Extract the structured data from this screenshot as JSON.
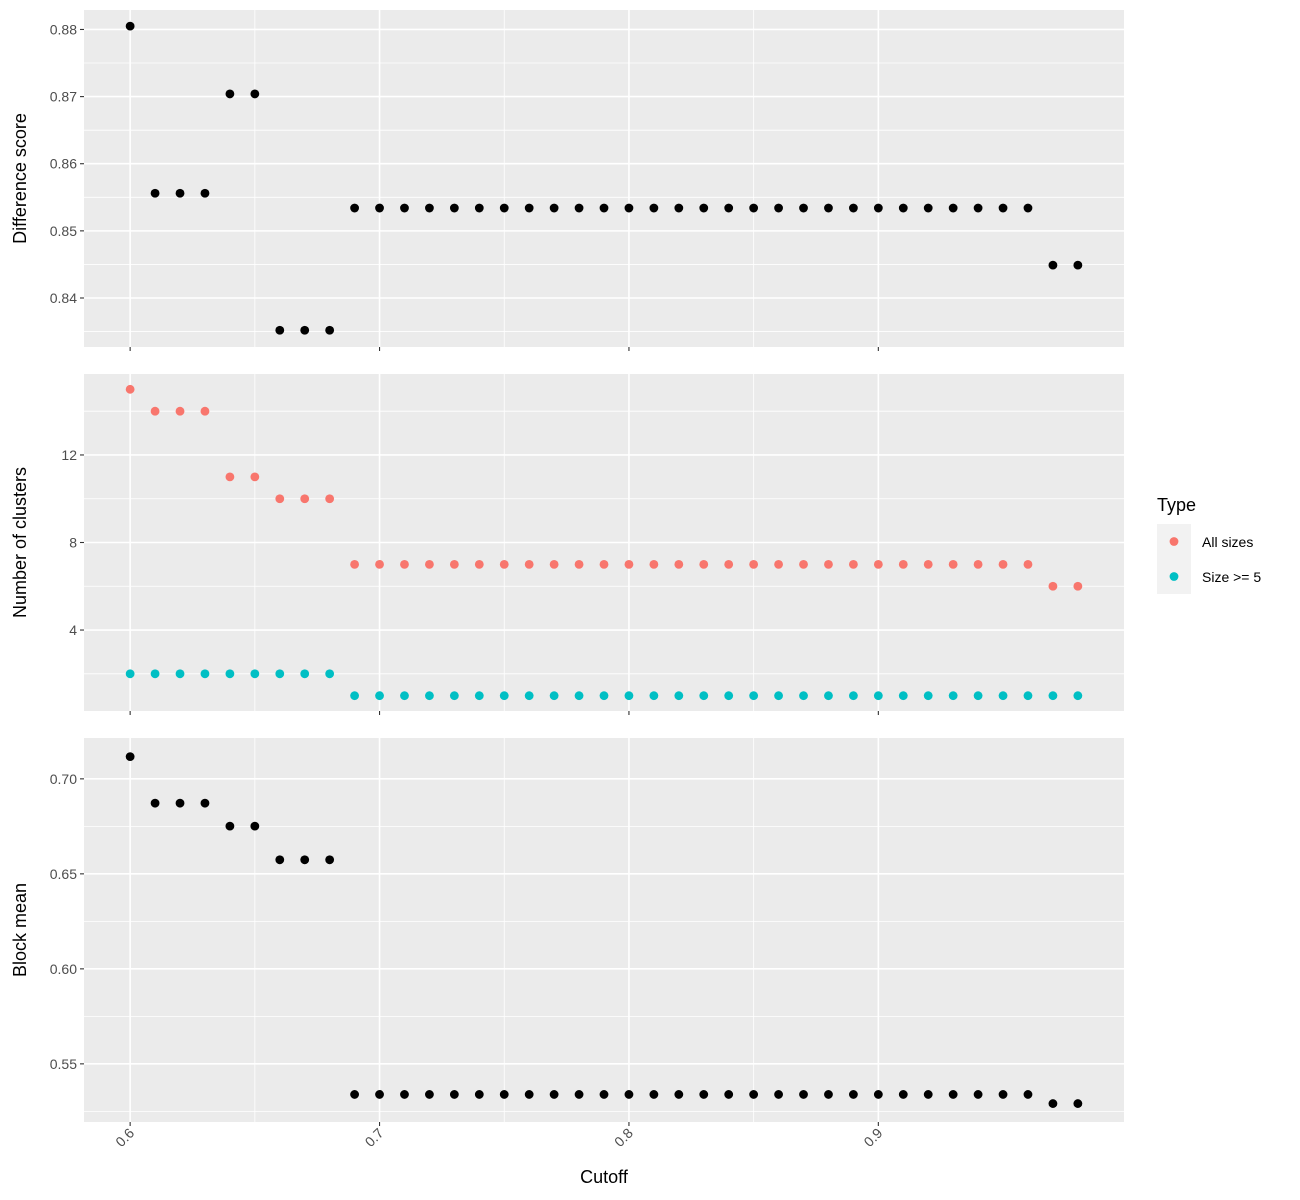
{
  "chart_data": {
    "type": "scatter",
    "x_label": "Cutoff",
    "x_ticks": [
      0.6,
      0.7,
      0.8,
      0.9
    ],
    "x_tick_labels": [
      "0.6",
      "0.7",
      "0.8",
      "0.9"
    ],
    "x_range": [
      0.5815,
      0.9985
    ],
    "x": [
      0.6,
      0.61,
      0.62,
      0.63,
      0.64,
      0.65,
      0.66,
      0.67,
      0.68,
      0.69,
      0.7,
      0.71,
      0.72,
      0.73,
      0.74,
      0.75,
      0.76,
      0.77,
      0.78,
      0.79,
      0.8,
      0.81,
      0.82,
      0.83,
      0.84,
      0.85,
      0.86,
      0.87,
      0.88,
      0.89,
      0.9,
      0.91,
      0.92,
      0.93,
      0.94,
      0.95,
      0.96,
      0.97,
      0.98
    ],
    "grid": true,
    "legend": {
      "title": "Type",
      "position": "right",
      "entries": [
        {
          "label": "All sizes",
          "color": "#F8766D"
        },
        {
          "label": "Size >= 5",
          "color": "#00BFC4"
        }
      ]
    },
    "panels": [
      {
        "id": "difference",
        "y_label": "Difference score",
        "y_range": [
          0.8327,
          0.8829
        ],
        "y_ticks": [
          0.84,
          0.85,
          0.86,
          0.87,
          0.88
        ],
        "y_tick_labels": [
          "0.84",
          "0.85",
          "0.86",
          "0.87",
          "0.88"
        ],
        "y_minor": [
          0.835,
          0.845,
          0.855,
          0.865,
          0.875
        ],
        "series": [
          {
            "color": "#000000",
            "values": [
              0.8805,
              0.8556,
              0.8556,
              0.8556,
              0.8704,
              0.8704,
              0.8352,
              0.8352,
              0.8352,
              0.8534,
              0.8534,
              0.8534,
              0.8534,
              0.8534,
              0.8534,
              0.8534,
              0.8534,
              0.8534,
              0.8534,
              0.8534,
              0.8534,
              0.8534,
              0.8534,
              0.8534,
              0.8534,
              0.8534,
              0.8534,
              0.8534,
              0.8534,
              0.8534,
              0.8534,
              0.8534,
              0.8534,
              0.8534,
              0.8534,
              0.8534,
              0.8534,
              0.8449,
              0.8449
            ]
          }
        ]
      },
      {
        "id": "clusters",
        "y_label": "Number of clusters",
        "y_range": [
          0.3,
          15.7
        ],
        "y_ticks": [
          4,
          8,
          12
        ],
        "y_tick_labels": [
          "4",
          "8",
          "12"
        ],
        "y_minor": [
          2,
          6,
          10,
          14
        ],
        "series": [
          {
            "name": "All sizes",
            "color": "#F8766D",
            "values": [
              15,
              14,
              14,
              14,
              11,
              11,
              10,
              10,
              10,
              7,
              7,
              7,
              7,
              7,
              7,
              7,
              7,
              7,
              7,
              7,
              7,
              7,
              7,
              7,
              7,
              7,
              7,
              7,
              7,
              7,
              7,
              7,
              7,
              7,
              7,
              7,
              7,
              6,
              6
            ]
          },
          {
            "name": "Size >= 5",
            "color": "#00BFC4",
            "values": [
              2,
              2,
              2,
              2,
              2,
              2,
              2,
              2,
              2,
              1,
              1,
              1,
              1,
              1,
              1,
              1,
              1,
              1,
              1,
              1,
              1,
              1,
              1,
              1,
              1,
              1,
              1,
              1,
              1,
              1,
              1,
              1,
              1,
              1,
              1,
              1,
              1,
              1,
              1
            ]
          }
        ]
      },
      {
        "id": "blockmean",
        "y_label": "Block mean",
        "y_range": [
          0.5194,
          0.7215
        ],
        "y_ticks": [
          0.55,
          0.6,
          0.65,
          0.7
        ],
        "y_tick_labels": [
          "0.55",
          "0.60",
          "0.65",
          "0.70"
        ],
        "y_minor": [
          0.525,
          0.575,
          0.625,
          0.675
        ],
        "series": [
          {
            "color": "#000000",
            "values": [
              0.7117,
              0.6872,
              0.6872,
              0.6872,
              0.6751,
              0.6751,
              0.6574,
              0.6574,
              0.6574,
              0.5339,
              0.5339,
              0.5339,
              0.5339,
              0.5339,
              0.5339,
              0.5339,
              0.5339,
              0.5339,
              0.5339,
              0.5339,
              0.5339,
              0.5339,
              0.5339,
              0.5339,
              0.5339,
              0.5339,
              0.5339,
              0.5339,
              0.5339,
              0.5339,
              0.5339,
              0.5339,
              0.5339,
              0.5339,
              0.5339,
              0.5339,
              0.5339,
              0.5291,
              0.5291
            ]
          }
        ]
      }
    ]
  }
}
